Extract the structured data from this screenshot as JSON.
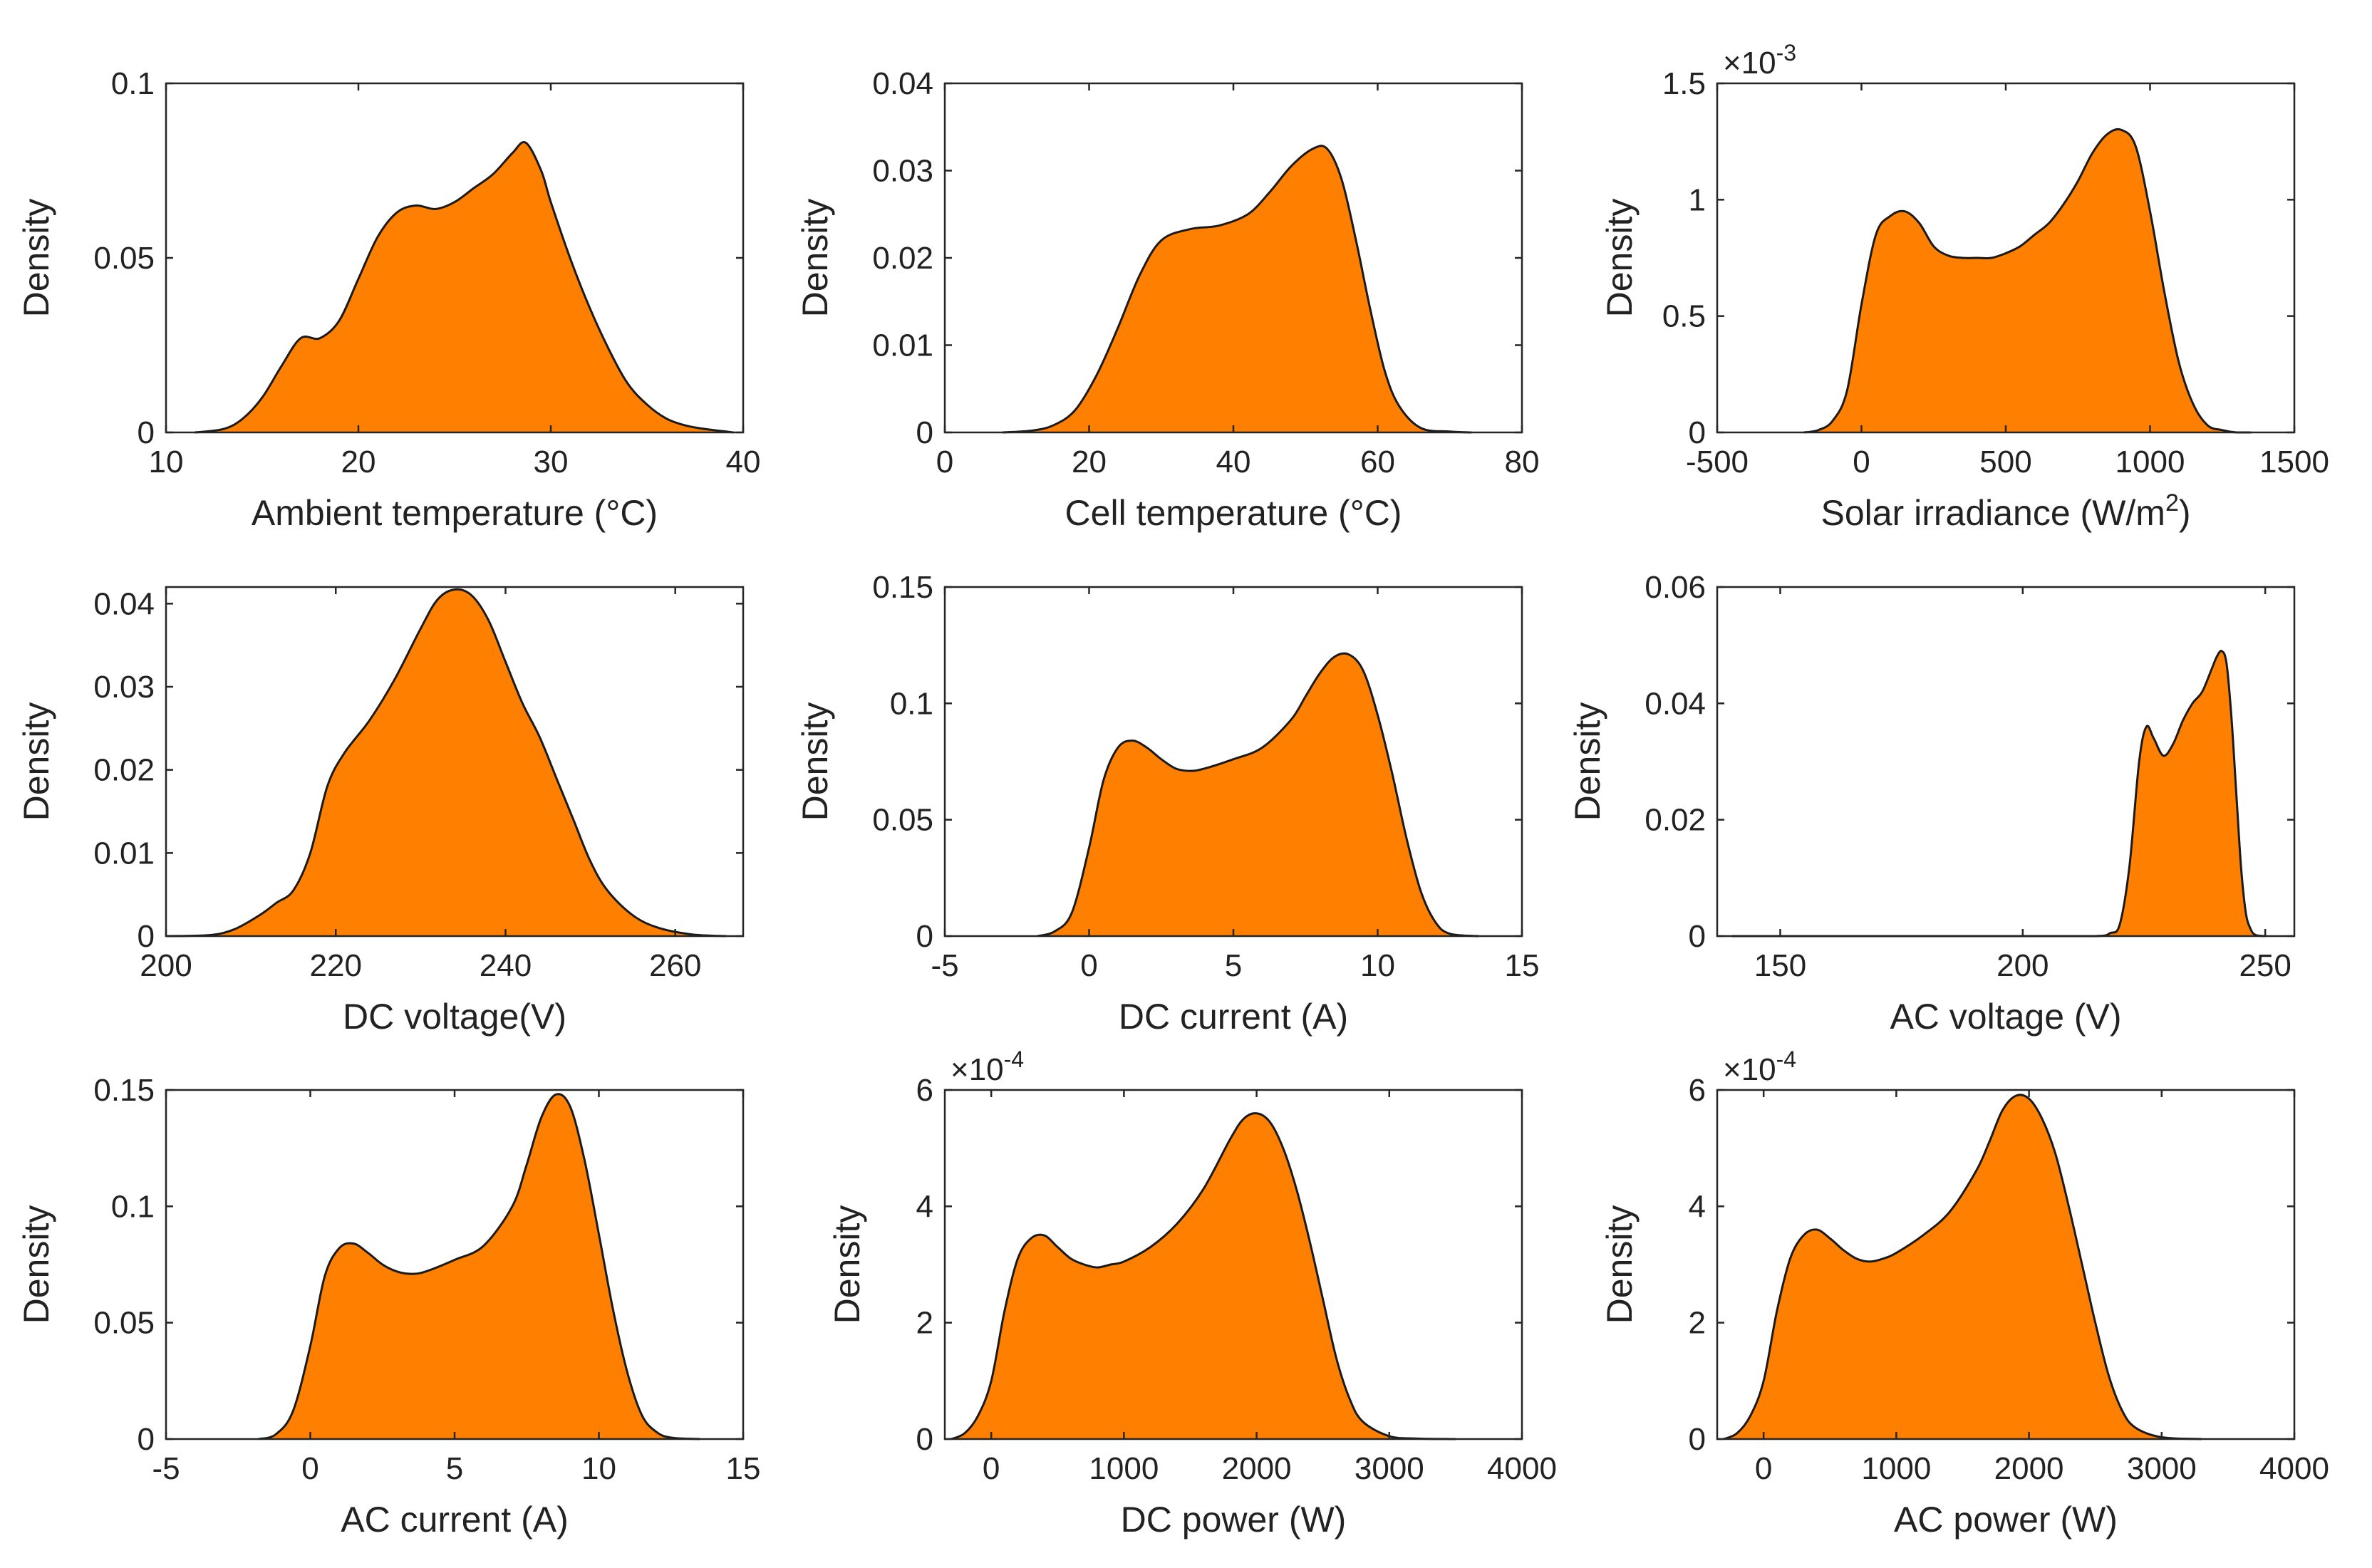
{
  "figure": {
    "fill_color": "#FF7F00",
    "line_color": "#1a1a1a",
    "axes_color": "#262626"
  },
  "chart_data": [
    {
      "type": "area",
      "xlabel": "Ambient temperature (°C)",
      "ylabel": "Density",
      "xlim": [
        10,
        40
      ],
      "ylim": [
        0,
        0.1
      ],
      "xticks": [
        10,
        20,
        30,
        40
      ],
      "xtick_labels": [
        "10",
        "20",
        "30",
        "40"
      ],
      "yticks": [
        0,
        0.05,
        0.1
      ],
      "ytick_labels": [
        "0",
        "0.05",
        "0.1"
      ],
      "exponent": "",
      "x": [
        11.5,
        13,
        14,
        15,
        16,
        17,
        18,
        19,
        20,
        21,
        22,
        23,
        24,
        25,
        26,
        27,
        28,
        28.7,
        29.5,
        30,
        31,
        32,
        33,
        34,
        35,
        36,
        37,
        38,
        39.5
      ],
      "y": [
        0,
        0.001,
        0.004,
        0.01,
        0.019,
        0.027,
        0.027,
        0.032,
        0.044,
        0.056,
        0.063,
        0.065,
        0.064,
        0.066,
        0.07,
        0.074,
        0.08,
        0.083,
        0.075,
        0.066,
        0.05,
        0.036,
        0.024,
        0.014,
        0.008,
        0.004,
        0.002,
        0.001,
        0
      ]
    },
    {
      "type": "area",
      "xlabel": "Cell temperature (°C)",
      "ylabel": "Density",
      "xlim": [
        0,
        80
      ],
      "ylim": [
        0,
        0.04
      ],
      "xticks": [
        0,
        20,
        40,
        60,
        80
      ],
      "xtick_labels": [
        "0",
        "20",
        "40",
        "60",
        "80"
      ],
      "yticks": [
        0,
        0.01,
        0.02,
        0.03,
        0.04
      ],
      "ytick_labels": [
        "0",
        "0.01",
        "0.02",
        "0.03",
        "0.04"
      ],
      "exponent": "",
      "x": [
        8,
        12,
        15,
        18,
        21,
        24,
        27,
        30,
        34,
        38,
        42,
        45,
        48,
        51,
        53,
        55,
        57,
        59,
        61,
        63,
        66,
        70,
        73
      ],
      "y": [
        0,
        0.0002,
        0.0008,
        0.0025,
        0.0065,
        0.012,
        0.018,
        0.022,
        0.0233,
        0.0237,
        0.025,
        0.0275,
        0.0305,
        0.0325,
        0.0325,
        0.029,
        0.022,
        0.014,
        0.007,
        0.003,
        0.0005,
        0.0001,
        0
      ]
    },
    {
      "type": "area",
      "xlabel": "Solar  irradiance (W/m",
      "xlabel_sup": "2",
      "xlabel_tail": ")",
      "ylabel": "Density",
      "xlim": [
        -500,
        1500
      ],
      "ylim": [
        0,
        0.0015
      ],
      "xticks": [
        -500,
        0,
        500,
        1000,
        1500
      ],
      "xtick_labels": [
        "-500",
        "0",
        "500",
        "1000",
        "1500"
      ],
      "yticks": [
        0,
        0.0005,
        0.001,
        0.0015
      ],
      "ytick_labels": [
        "0",
        "0.5",
        "1",
        "1.5"
      ],
      "exponent": "-3",
      "x": [
        -200,
        -150,
        -100,
        -50,
        0,
        50,
        100,
        150,
        200,
        250,
        300,
        350,
        400,
        450,
        500,
        550,
        600,
        650,
        700,
        750,
        800,
        850,
        900,
        950,
        1000,
        1050,
        1100,
        1150,
        1200,
        1250,
        1300,
        1350
      ],
      "y": [
        0,
        1e-05,
        5e-05,
        0.00018,
        0.00055,
        0.00085,
        0.00093,
        0.00095,
        0.0009,
        0.0008,
        0.00076,
        0.00075,
        0.00075,
        0.00075,
        0.00077,
        0.0008,
        0.00085,
        0.0009,
        0.00098,
        0.00108,
        0.0012,
        0.00128,
        0.0013,
        0.00123,
        0.00095,
        0.0006,
        0.0003,
        0.00012,
        3e-05,
        1e-05,
        0,
        0
      ]
    },
    {
      "type": "area",
      "xlabel": "DC voltage(V)",
      "ylabel": "Density",
      "xlim": [
        200,
        268
      ],
      "ylim": [
        0,
        0.042
      ],
      "xticks": [
        200,
        220,
        240,
        260
      ],
      "xtick_labels": [
        "200",
        "220",
        "240",
        "260"
      ],
      "yticks": [
        0,
        0.01,
        0.02,
        0.03,
        0.04
      ],
      "ytick_labels": [
        "0",
        "0.01",
        "0.02",
        "0.03",
        "0.04"
      ],
      "exponent": "",
      "x": [
        200,
        205,
        208,
        211,
        213,
        215,
        217,
        219,
        221,
        224,
        227,
        230,
        232,
        234,
        236,
        238,
        240,
        242,
        244,
        246,
        248,
        250,
        252,
        255,
        258,
        262,
        266
      ],
      "y": [
        0,
        0.0001,
        0.0008,
        0.0025,
        0.004,
        0.0055,
        0.01,
        0.018,
        0.022,
        0.026,
        0.031,
        0.037,
        0.0405,
        0.0417,
        0.041,
        0.038,
        0.033,
        0.028,
        0.024,
        0.019,
        0.014,
        0.009,
        0.0055,
        0.0025,
        0.001,
        0.0002,
        0
      ]
    },
    {
      "type": "area",
      "xlabel": "DC current (A)",
      "ylabel": "Density",
      "xlim": [
        -5,
        15
      ],
      "ylim": [
        0,
        0.15
      ],
      "xticks": [
        -5,
        0,
        5,
        10,
        15
      ],
      "xtick_labels": [
        "-5",
        "0",
        "5",
        "10",
        "15"
      ],
      "yticks": [
        0,
        0.05,
        0.1,
        0.15
      ],
      "ytick_labels": [
        "0",
        "0.05",
        "0.1",
        "0.15"
      ],
      "exponent": "",
      "x": [
        -1.8,
        -1.2,
        -0.6,
        0,
        0.5,
        1,
        1.5,
        2,
        2.5,
        3,
        3.5,
        4,
        5,
        6,
        7,
        7.5,
        8,
        8.5,
        9,
        9.5,
        10,
        10.5,
        11,
        11.5,
        12,
        12.5,
        13.5
      ],
      "y": [
        0,
        0.002,
        0.01,
        0.038,
        0.067,
        0.081,
        0.084,
        0.081,
        0.076,
        0.072,
        0.071,
        0.072,
        0.076,
        0.081,
        0.093,
        0.103,
        0.113,
        0.12,
        0.121,
        0.114,
        0.095,
        0.07,
        0.042,
        0.019,
        0.006,
        0.001,
        0
      ]
    },
    {
      "type": "area",
      "xlabel": "AC voltage (V)",
      "ylabel": "Density",
      "xlim": [
        137,
        256
      ],
      "ylim": [
        0,
        0.06
      ],
      "xticks": [
        150,
        200,
        250
      ],
      "xtick_labels": [
        "150",
        "200",
        "250"
      ],
      "yticks": [
        0,
        0.02,
        0.04,
        0.06
      ],
      "ytick_labels": [
        "0",
        "0.02",
        "0.04",
        "0.06"
      ],
      "exponent": "",
      "x": [
        140,
        200,
        215,
        218,
        220,
        222,
        224,
        225.5,
        227,
        229,
        231,
        233,
        235,
        237,
        239,
        240,
        241,
        242,
        243,
        244,
        245,
        246,
        247,
        248,
        250
      ],
      "y": [
        0,
        0,
        0,
        0.0005,
        0.002,
        0.012,
        0.03,
        0.036,
        0.034,
        0.031,
        0.033,
        0.037,
        0.04,
        0.042,
        0.046,
        0.048,
        0.049,
        0.047,
        0.038,
        0.025,
        0.012,
        0.004,
        0.0012,
        0.0002,
        0
      ]
    },
    {
      "type": "area",
      "xlabel": "AC current (A)",
      "ylabel": "Density",
      "xlim": [
        -5,
        15
      ],
      "ylim": [
        0,
        0.15
      ],
      "xticks": [
        -5,
        0,
        5,
        10,
        15
      ],
      "xtick_labels": [
        "-5",
        "0",
        "5",
        "10",
        "15"
      ],
      "yticks": [
        0,
        0.05,
        0.1,
        0.15
      ],
      "ytick_labels": [
        "0",
        "0.05",
        "0.1",
        "0.15"
      ],
      "exponent": "",
      "x": [
        -1.8,
        -1.2,
        -0.6,
        0,
        0.5,
        1,
        1.5,
        2,
        2.5,
        3,
        3.5,
        4,
        5,
        6,
        7,
        7.5,
        8,
        8.5,
        9,
        9.5,
        10,
        10.5,
        11,
        11.5,
        12,
        12.5,
        13.5
      ],
      "y": [
        0,
        0.002,
        0.012,
        0.04,
        0.07,
        0.082,
        0.084,
        0.08,
        0.075,
        0.072,
        0.071,
        0.072,
        0.077,
        0.083,
        0.1,
        0.118,
        0.138,
        0.148,
        0.143,
        0.12,
        0.088,
        0.055,
        0.028,
        0.01,
        0.003,
        0.0006,
        0
      ]
    },
    {
      "type": "area",
      "xlabel": "DC power (W)",
      "ylabel": "Density",
      "xlim": [
        -350,
        4000
      ],
      "ylim": [
        0,
        0.0006
      ],
      "xticks": [
        0,
        1000,
        2000,
        3000,
        4000
      ],
      "xtick_labels": [
        "0",
        "1000",
        "2000",
        "3000",
        "4000"
      ],
      "yticks": [
        0,
        0.0002,
        0.0004,
        0.0006
      ],
      "ytick_labels": [
        "0",
        "2",
        "4",
        "6"
      ],
      "exponent": "-4",
      "x": [
        -300,
        -200,
        -100,
        0,
        100,
        200,
        300,
        400,
        500,
        600,
        700,
        800,
        900,
        1000,
        1200,
        1400,
        1600,
        1800,
        1900,
        2000,
        2100,
        2200,
        2300,
        2400,
        2500,
        2600,
        2700,
        2800,
        3000,
        3200,
        3500
      ],
      "y": [
        0,
        1e-05,
        4e-05,
        0.0001,
        0.00022,
        0.00031,
        0.000345,
        0.00035,
        0.00033,
        0.00031,
        0.0003,
        0.000295,
        0.0003,
        0.000305,
        0.00033,
        0.00037,
        0.00043,
        0.000515,
        0.00055,
        0.00056,
        0.000545,
        0.0005,
        0.00043,
        0.00034,
        0.00024,
        0.00014,
        7e-05,
        3e-05,
        5e-06,
        1e-06,
        0
      ]
    },
    {
      "type": "area",
      "xlabel": "AC power (W)",
      "ylabel": "Density",
      "xlim": [
        -350,
        4000
      ],
      "ylim": [
        0,
        0.0006
      ],
      "xticks": [
        0,
        1000,
        2000,
        3000,
        4000
      ],
      "xtick_labels": [
        "0",
        "1000",
        "2000",
        "3000",
        "4000"
      ],
      "yticks": [
        0,
        0.0002,
        0.0004,
        0.0006
      ],
      "ytick_labels": [
        "0",
        "2",
        "4",
        "6"
      ],
      "exponent": "-4",
      "x": [
        -300,
        -200,
        -100,
        0,
        100,
        200,
        300,
        400,
        500,
        600,
        700,
        800,
        900,
        1000,
        1200,
        1400,
        1600,
        1700,
        1800,
        1900,
        2000,
        2100,
        2200,
        2300,
        2400,
        2500,
        2600,
        2700,
        2800,
        3000,
        3300
      ],
      "y": [
        0,
        1e-05,
        4e-05,
        0.0001,
        0.00022,
        0.00031,
        0.00035,
        0.00036,
        0.000345,
        0.000325,
        0.00031,
        0.000305,
        0.00031,
        0.00032,
        0.00035,
        0.00039,
        0.00046,
        0.00051,
        0.000565,
        0.00059,
        0.000585,
        0.00055,
        0.00049,
        0.0004,
        0.0003,
        0.0002,
        0.00011,
        5e-05,
        2e-05,
        3e-06,
        0
      ]
    }
  ]
}
